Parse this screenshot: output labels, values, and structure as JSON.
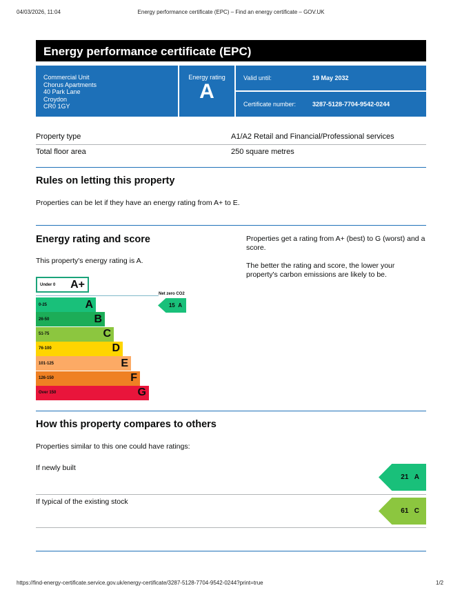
{
  "browser": {
    "datetime": "04/03/2026, 11:04",
    "page_title": "Energy performance certificate (EPC) – Find an energy certificate – GOV.UK",
    "url": "https://find-energy-certificate.service.gov.uk/energy-certificate/3287-5128-7704-9542-0244?print=true",
    "page": "1/2"
  },
  "title": "Energy performance certificate (EPC)",
  "address": [
    "Commercial Unit",
    "Chorus Apartments",
    "40 Park Lane",
    "Croydon",
    "CR0 1GY"
  ],
  "rating": {
    "label": "Energy rating",
    "value": "A"
  },
  "valid": {
    "label": "Valid until:",
    "value": "19 May 2032"
  },
  "cert": {
    "label": "Certificate number:",
    "value": "3287-5128-7704-9542-0244"
  },
  "props": [
    {
      "k": "Property type",
      "v": "A1/A2 Retail and Financial/Professional services"
    },
    {
      "k": "Total floor area",
      "v": "250 square metres"
    }
  ],
  "letting": {
    "heading": "Rules on letting this property",
    "text": "Properties can be let if they have an energy rating from A+ to E."
  },
  "score": {
    "heading": "Energy rating and score",
    "text": "This property's energy rating is A.",
    "side1": "Properties get a rating from A+ (best) to G (worst) and a score.",
    "side2": "The better the rating and score, the lower your property's carbon emissions are likely to be."
  },
  "scale": {
    "aplus": {
      "range": "Under 0",
      "letter": "A+",
      "color": "#1aa37a"
    },
    "netzero": "Net zero CO2",
    "bands": [
      {
        "range": "0-25",
        "letter": "A",
        "color": "#19c07a"
      },
      {
        "range": "26-50",
        "letter": "B",
        "color": "#1cad58"
      },
      {
        "range": "51-75",
        "letter": "C",
        "color": "#8cc63f"
      },
      {
        "range": "76-100",
        "letter": "D",
        "color": "#ffd500"
      },
      {
        "range": "101-125",
        "letter": "E",
        "color": "#fcaa65"
      },
      {
        "range": "126-150",
        "letter": "F",
        "color": "#ef8023"
      },
      {
        "range": "Over 150",
        "letter": "G",
        "color": "#e9153b"
      }
    ],
    "current": {
      "score": "15",
      "letter": "A"
    }
  },
  "compare": {
    "heading": "How this property compares to others",
    "text": "Properties similar to this one could have ratings:",
    "rows": [
      {
        "label": "If newly built",
        "score": "21",
        "letter": "A",
        "color": "#19c07a"
      },
      {
        "label": "If typical of the existing stock",
        "score": "61",
        "letter": "C",
        "color": "#8cc63f"
      }
    ]
  }
}
